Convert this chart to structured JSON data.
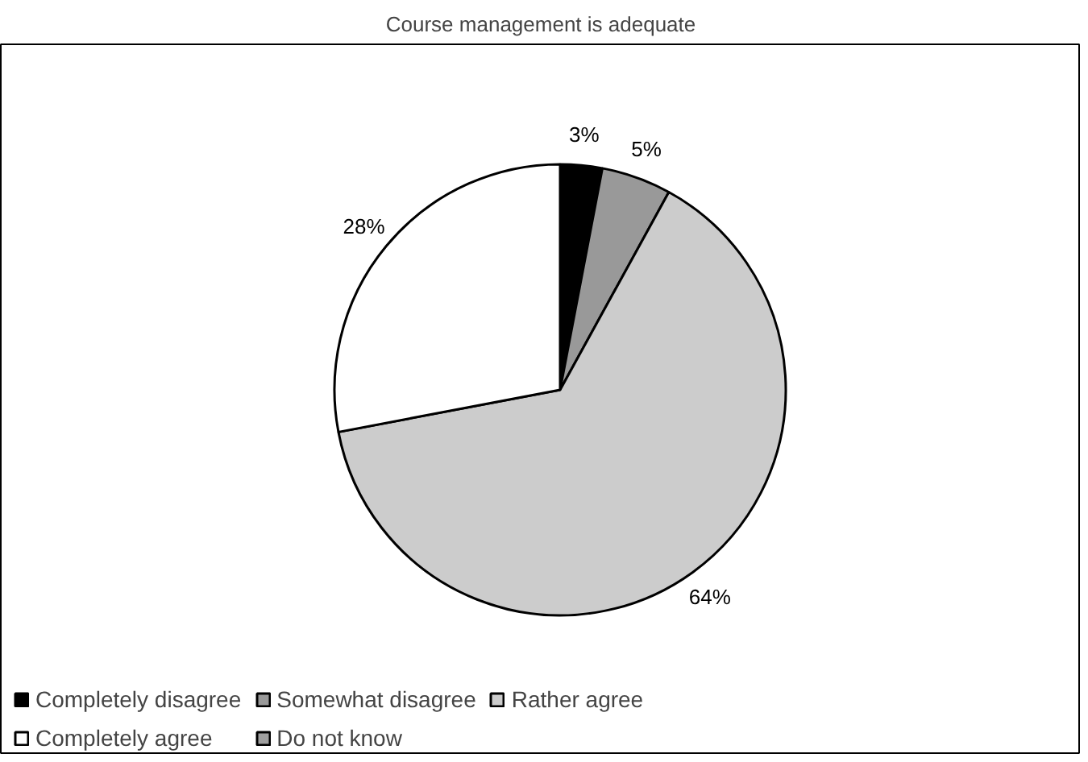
{
  "chart_data": {
    "type": "pie",
    "title": "Course management is adequate",
    "categories": [
      "Completely disagree",
      "Somewhat disagree",
      "Rather agree",
      "Completely agree",
      "Do not know"
    ],
    "values": [
      3,
      5,
      64,
      28,
      0
    ],
    "colors": [
      "#000000",
      "#999999",
      "#cccccc",
      "#ffffff",
      "#a0a0a0"
    ],
    "value_labels": [
      "3%",
      "5%",
      "64%",
      "28%",
      null
    ],
    "legend": "bottom"
  }
}
